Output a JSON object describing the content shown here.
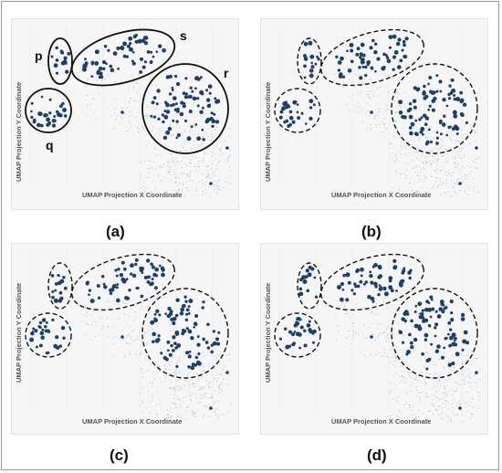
{
  "figure": {
    "x_axis_label": "UMAP Projection X Coordinate",
    "y_axis_label": "UMAP Projection Y Coordinate"
  },
  "colors": {
    "highlight_points": "#1f3f66",
    "background_points": "#8aa0b4",
    "panel_background": "#f6f6f6"
  },
  "chart_data": [
    {
      "type": "scatter",
      "caption": "(a)",
      "xlabel": "UMAP Projection X Coordinate",
      "ylabel": "UMAP Projection Y Coordinate",
      "cluster_outline": "solid",
      "cluster_labels": [
        "p",
        "q",
        "s",
        "r"
      ],
      "highlighted_clusters": [
        "p",
        "q",
        "s",
        "r"
      ]
    },
    {
      "type": "scatter",
      "caption": "(b)",
      "xlabel": "UMAP Projection X Coordinate",
      "ylabel": "UMAP Projection Y Coordinate",
      "cluster_outline": "dashed",
      "cluster_labels": [],
      "highlighted_clusters": [
        "p",
        "q",
        "s",
        "r"
      ]
    },
    {
      "type": "scatter",
      "caption": "(c)",
      "xlabel": "UMAP Projection X Coordinate",
      "ylabel": "UMAP Projection Y Coordinate",
      "cluster_outline": "dashed",
      "cluster_labels": [],
      "highlighted_clusters": [
        "p",
        "q",
        "s",
        "r"
      ]
    },
    {
      "type": "scatter",
      "caption": "(d)",
      "xlabel": "UMAP Projection X Coordinate",
      "ylabel": "UMAP Projection Y Coordinate",
      "cluster_outline": "dashed",
      "cluster_labels": [],
      "highlighted_clusters": [
        "p",
        "q",
        "s",
        "r"
      ]
    }
  ]
}
